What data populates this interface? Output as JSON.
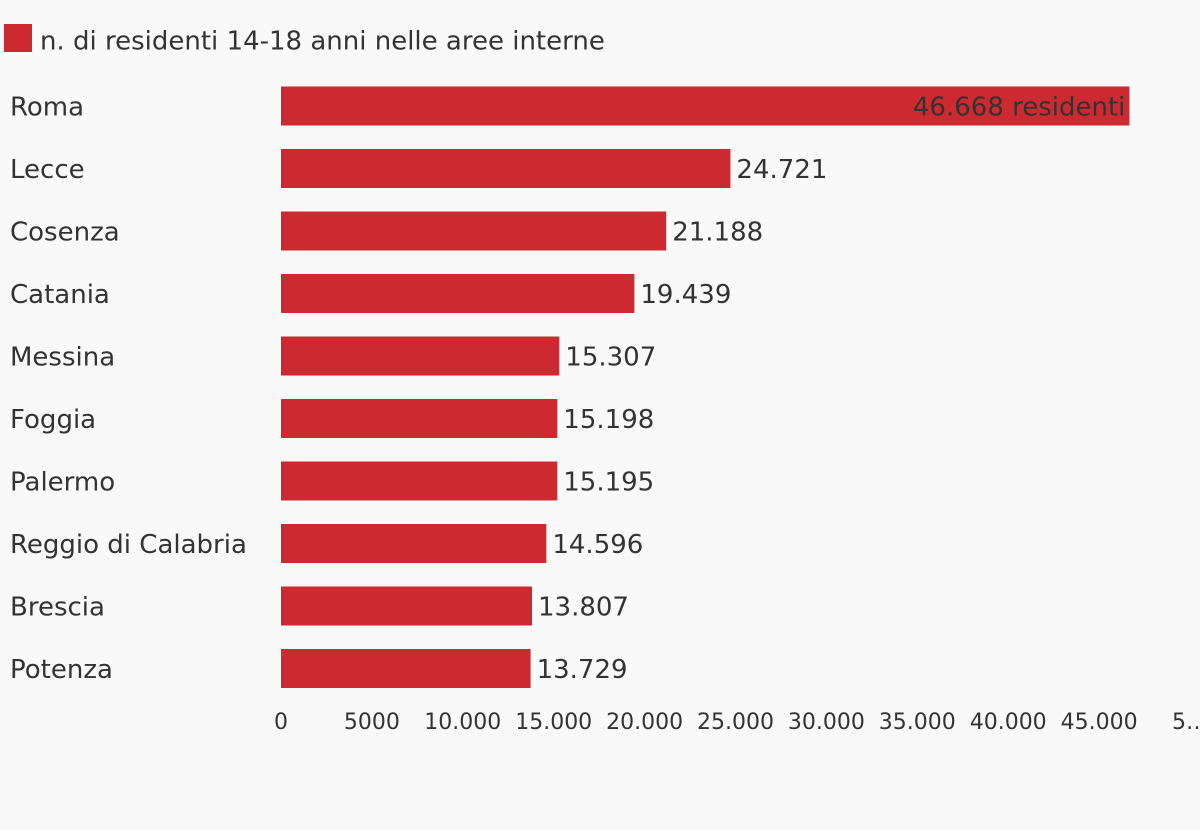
{
  "chart_data": {
    "type": "bar",
    "orientation": "horizontal",
    "categories": [
      "Roma",
      "Lecce",
      "Cosenza",
      "Catania",
      "Messina",
      "Foggia",
      "Palermo",
      "Reggio di Calabria",
      "Brescia",
      "Potenza"
    ],
    "series": [
      {
        "name": "n. di residenti 14-18 anni nelle aree interne",
        "color": "#cc2a30",
        "values": [
          46668,
          24721,
          21188,
          19439,
          15307,
          15198,
          15195,
          14596,
          13807,
          13729
        ],
        "value_labels": [
          "46.668 residenti",
          "24.721",
          "21.188",
          "19.439",
          "15.307",
          "15.198",
          "15.195",
          "14.596",
          "13.807",
          "13.729"
        ]
      }
    ],
    "xlim": [
      0,
      50000
    ],
    "xticks": [
      0,
      5000,
      {
        "value": 10000,
        "label": "10.000"
      },
      {
        "value": 15000,
        "label": "15.000"
      },
      {
        "value": 20000,
        "label": "20.000"
      },
      {
        "value": 25000,
        "label": "25.000"
      },
      {
        "value": 30000,
        "label": "30.000"
      },
      {
        "value": 35000,
        "label": "35.000"
      },
      {
        "value": 40000,
        "label": "40.000"
      },
      {
        "value": 45000,
        "label": "45.000"
      },
      {
        "value": 50000,
        "label": "5…"
      }
    ],
    "legend": "top-left",
    "grid": false
  }
}
